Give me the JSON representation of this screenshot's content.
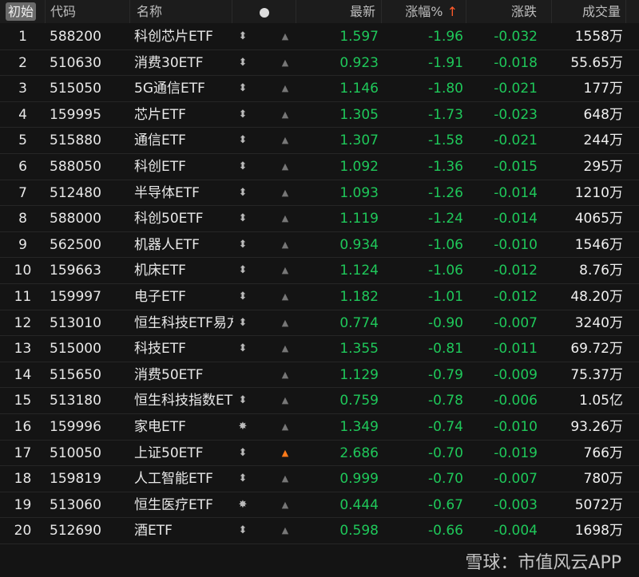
{
  "header": {
    "start": "初始",
    "code": "代码",
    "name": "名称",
    "latest": "最新",
    "pct": "涨幅%",
    "sort_arrow": "↑",
    "change": "涨跌",
    "volume": "成交量"
  },
  "colors": {
    "down": "#1fc85a",
    "sort": "#ff5a2a",
    "bell_active": "#ff7a1a"
  },
  "rows": [
    {
      "rank": "1",
      "code": "588200",
      "name": "科创芯片ETF",
      "icon": "updown",
      "bell": "off",
      "latest": "1.597",
      "pct": "-1.96",
      "change": "-0.032",
      "volume": "1558万"
    },
    {
      "rank": "2",
      "code": "510630",
      "name": "消费30ETF",
      "icon": "updown",
      "bell": "off",
      "latest": "0.923",
      "pct": "-1.91",
      "change": "-0.018",
      "volume": "55.65万"
    },
    {
      "rank": "3",
      "code": "515050",
      "name": "5G通信ETF",
      "icon": "updown",
      "bell": "off",
      "latest": "1.146",
      "pct": "-1.80",
      "change": "-0.021",
      "volume": "177万"
    },
    {
      "rank": "4",
      "code": "159995",
      "name": "芯片ETF",
      "icon": "updown",
      "bell": "off",
      "latest": "1.305",
      "pct": "-1.73",
      "change": "-0.023",
      "volume": "648万"
    },
    {
      "rank": "5",
      "code": "515880",
      "name": "通信ETF",
      "icon": "updown",
      "bell": "off",
      "latest": "1.307",
      "pct": "-1.58",
      "change": "-0.021",
      "volume": "244万"
    },
    {
      "rank": "6",
      "code": "588050",
      "name": "科创ETF",
      "icon": "updown",
      "bell": "off",
      "latest": "1.092",
      "pct": "-1.36",
      "change": "-0.015",
      "volume": "295万"
    },
    {
      "rank": "7",
      "code": "512480",
      "name": "半导体ETF",
      "icon": "updown",
      "bell": "off",
      "latest": "1.093",
      "pct": "-1.26",
      "change": "-0.014",
      "volume": "1210万"
    },
    {
      "rank": "8",
      "code": "588000",
      "name": "科创50ETF",
      "icon": "updown",
      "bell": "off",
      "latest": "1.119",
      "pct": "-1.24",
      "change": "-0.014",
      "volume": "4065万"
    },
    {
      "rank": "9",
      "code": "562500",
      "name": "机器人ETF",
      "icon": "updown",
      "bell": "off",
      "latest": "0.934",
      "pct": "-1.06",
      "change": "-0.010",
      "volume": "1546万"
    },
    {
      "rank": "10",
      "code": "159663",
      "name": "机床ETF",
      "icon": "updown",
      "bell": "off",
      "latest": "1.124",
      "pct": "-1.06",
      "change": "-0.012",
      "volume": "8.76万"
    },
    {
      "rank": "11",
      "code": "159997",
      "name": "电子ETF",
      "icon": "updown",
      "bell": "off",
      "latest": "1.182",
      "pct": "-1.01",
      "change": "-0.012",
      "volume": "48.20万"
    },
    {
      "rank": "12",
      "code": "513010",
      "name": "恒生科技ETF易方",
      "icon": "updown",
      "bell": "off",
      "latest": "0.774",
      "pct": "-0.90",
      "change": "-0.007",
      "volume": "3240万"
    },
    {
      "rank": "13",
      "code": "515000",
      "name": "科技ETF",
      "icon": "updown",
      "bell": "off",
      "latest": "1.355",
      "pct": "-0.81",
      "change": "-0.011",
      "volume": "69.72万"
    },
    {
      "rank": "14",
      "code": "515650",
      "name": "消费50ETF",
      "icon": "",
      "bell": "off",
      "latest": "1.129",
      "pct": "-0.79",
      "change": "-0.009",
      "volume": "75.37万"
    },
    {
      "rank": "15",
      "code": "513180",
      "name": "恒生科技指数ET",
      "icon": "updown",
      "bell": "off",
      "latest": "0.759",
      "pct": "-0.78",
      "change": "-0.006",
      "volume": "1.05亿"
    },
    {
      "rank": "16",
      "code": "159996",
      "name": "家电ETF",
      "icon": "sun",
      "bell": "off",
      "latest": "1.349",
      "pct": "-0.74",
      "change": "-0.010",
      "volume": "93.26万"
    },
    {
      "rank": "17",
      "code": "510050",
      "name": "上证50ETF",
      "icon": "updown",
      "bell": "on",
      "latest": "2.686",
      "pct": "-0.70",
      "change": "-0.019",
      "volume": "766万"
    },
    {
      "rank": "18",
      "code": "159819",
      "name": "人工智能ETF",
      "icon": "updown",
      "bell": "off",
      "latest": "0.999",
      "pct": "-0.70",
      "change": "-0.007",
      "volume": "780万"
    },
    {
      "rank": "19",
      "code": "513060",
      "name": "恒生医疗ETF",
      "icon": "sun",
      "bell": "off",
      "latest": "0.444",
      "pct": "-0.67",
      "change": "-0.003",
      "volume": "5072万"
    },
    {
      "rank": "20",
      "code": "512690",
      "name": "酒ETF",
      "icon": "updown",
      "bell": "off",
      "latest": "0.598",
      "pct": "-0.66",
      "change": "-0.004",
      "volume": "1698万"
    }
  ],
  "watermark": "雪球：市值风云APP"
}
